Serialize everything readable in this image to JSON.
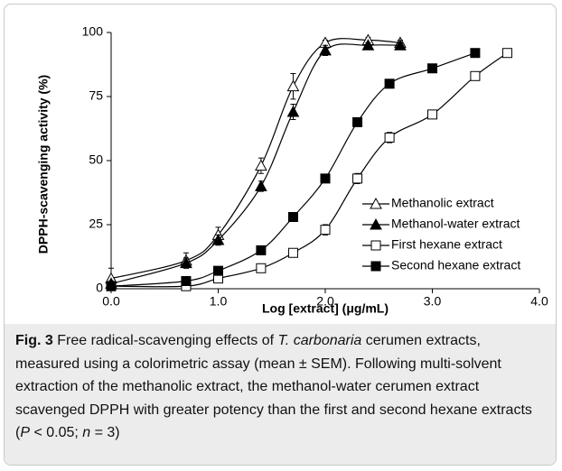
{
  "chart_data": {
    "type": "scatter-line",
    "ylabel": "DPPH-scavenging activity (%)",
    "xlabel": "Log [extract] (μg/mL)",
    "xlim": [
      0,
      4
    ],
    "xticks": [
      {
        "value": 0,
        "label": "0.0"
      },
      {
        "value": 1,
        "label": "1.0"
      },
      {
        "value": 2,
        "label": "2.0"
      },
      {
        "value": 3,
        "label": "3.0"
      },
      {
        "value": 4,
        "label": "4.0"
      }
    ],
    "ylim": [
      0,
      100
    ],
    "yticks": [
      0,
      25,
      50,
      75,
      100
    ],
    "legend": "right",
    "series": [
      {
        "name": "Methanolic extract",
        "color": "#000000",
        "marker": "triangle",
        "filled": false,
        "x": [
          0,
          0.7,
          1.0,
          1.4,
          1.7,
          2.0,
          2.4,
          2.7
        ],
        "values": [
          4,
          11,
          21,
          48,
          79,
          96,
          97,
          96
        ],
        "errors": [
          4,
          3,
          3,
          3,
          5,
          1,
          1,
          1
        ]
      },
      {
        "name": "Methanol-water extract",
        "color": "#000000",
        "marker": "triangle",
        "filled": true,
        "x": [
          0,
          0.7,
          1.0,
          1.4,
          1.7,
          2.0,
          2.4,
          2.7
        ],
        "values": [
          2,
          10,
          19,
          40,
          69,
          93,
          95,
          95
        ],
        "errors": [
          1,
          2,
          2,
          2,
          3,
          2,
          1,
          1
        ]
      },
      {
        "name": "First hexane extract",
        "color": "#000000",
        "marker": "square",
        "filled": false,
        "x": [
          0,
          0.7,
          1.0,
          1.4,
          1.7,
          2.0,
          2.3,
          2.6,
          3.0,
          3.4,
          3.7
        ],
        "values": [
          1,
          1,
          4,
          8,
          14,
          23,
          43,
          59,
          68,
          83,
          92
        ],
        "errors": [
          1,
          1,
          1,
          1,
          1,
          2,
          2,
          2,
          1,
          1,
          1
        ]
      },
      {
        "name": "Second hexane extract",
        "color": "#000000",
        "marker": "square",
        "filled": true,
        "x": [
          0,
          0.7,
          1.0,
          1.4,
          1.7,
          2.0,
          2.3,
          2.6,
          3.0,
          3.4
        ],
        "values": [
          1,
          3,
          7,
          15,
          28,
          43,
          65,
          80,
          86,
          92
        ],
        "errors": [
          1,
          1,
          1,
          1,
          1,
          1,
          1,
          1,
          1,
          1
        ]
      }
    ]
  },
  "caption": {
    "label": "Fig. 3",
    "segments": [
      {
        "text": " Free radical-scavenging effects of ",
        "italic": false
      },
      {
        "text": "T. carbonaria",
        "italic": true
      },
      {
        "text": " cerumen extracts, measured using a colorimetric assay (mean ± SEM). Following multi-solvent extraction of the methanolic extract, the methanol-water cerumen extract scavenged DPPH with greater potency than the first and second hexane extracts (",
        "italic": false
      },
      {
        "text": "P",
        "italic": true
      },
      {
        "text": " < 0.05; ",
        "italic": false
      },
      {
        "text": "n",
        "italic": true
      },
      {
        "text": " = 3)",
        "italic": false
      }
    ]
  }
}
